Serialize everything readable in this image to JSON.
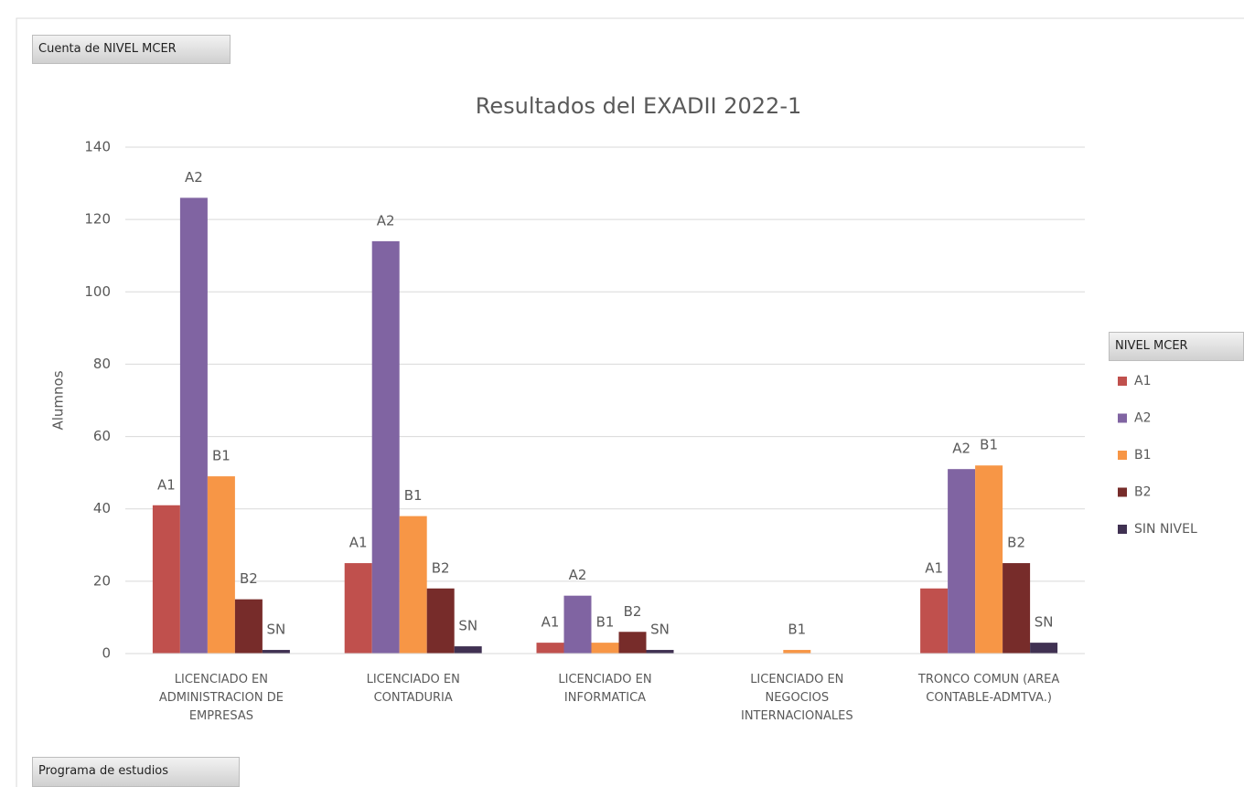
{
  "chart_data": {
    "type": "bar",
    "title": "Resultados del EXADII 2022-1",
    "ylabel": "Alumnos",
    "field_button": "Cuenta de NIVEL MCER",
    "axis_button": "Programa de estudios",
    "legend_title": "NIVEL MCER",
    "legend": "right",
    "grid": true,
    "categories": [
      "LICENCIADO EN ADMINISTRACION DE EMPRESAS",
      "LICENCIADO EN CONTADURIA",
      "LICENCIADO EN INFORMATICA",
      "LICENCIADO EN NEGOCIOS INTERNACIONALES",
      "TRONCO COMUN (AREA CONTABLE-ADMTVA.)"
    ],
    "series": [
      {
        "name": "A1",
        "label": "A1",
        "color": "#c0504d",
        "values": [
          41,
          25,
          3,
          null,
          18
        ]
      },
      {
        "name": "A2",
        "label": "A2",
        "color": "#8064a2",
        "values": [
          126,
          114,
          16,
          null,
          51
        ]
      },
      {
        "name": "B1",
        "label": "B1",
        "color": "#f79646",
        "values": [
          49,
          38,
          3,
          1,
          52
        ]
      },
      {
        "name": "B2",
        "label": "B2",
        "color": "#772c2a",
        "values": [
          15,
          18,
          6,
          null,
          25
        ]
      },
      {
        "name": "SIN NIVEL",
        "label": "SN",
        "color": "#403152",
        "values": [
          1,
          2,
          1,
          null,
          3
        ]
      }
    ],
    "ylim": [
      0,
      140
    ],
    "yticks": [
      0,
      20,
      40,
      60,
      80,
      100,
      120,
      140
    ]
  }
}
